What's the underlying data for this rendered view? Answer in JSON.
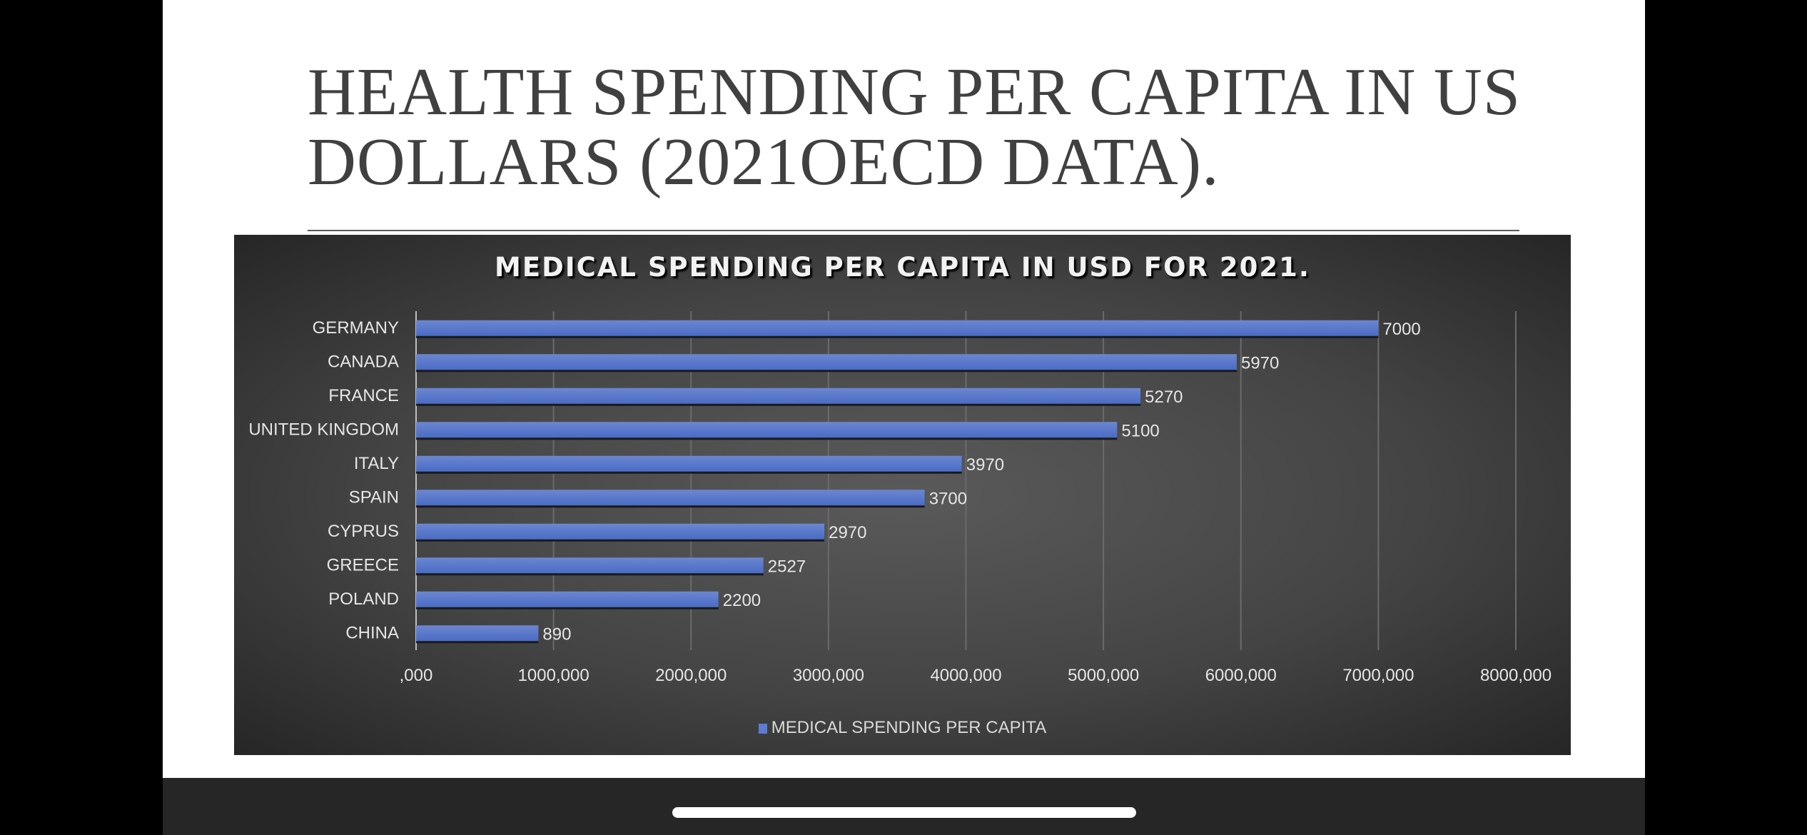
{
  "slide": {
    "title": "HEALTH SPENDING PER CAPITA IN US DOLLARS (2021OECD DATA)."
  },
  "chart_data": {
    "type": "bar",
    "orientation": "horizontal",
    "title": "MEDICAL SPENDING PER CAPITA IN USD FOR 2021.",
    "categories": [
      "GERMANY",
      "CANADA",
      "FRANCE",
      "UNITED KINGDOM",
      "ITALY",
      "SPAIN",
      "CYPRUS",
      "GREECE",
      "POLAND",
      "CHINA"
    ],
    "series": [
      {
        "name": "MEDICAL SPENDING PER CAPITA",
        "values": [
          7000,
          5970,
          5270,
          5100,
          3970,
          3700,
          2970,
          2527,
          2200,
          890
        ],
        "color": "#5b7bd5"
      }
    ],
    "data_labels": [
      "7000",
      "5970",
      "5270",
      "5100",
      "3970",
      "3700",
      "2970",
      "2527",
      "2200",
      "890"
    ],
    "x_ticks": [
      0,
      1000,
      2000,
      3000,
      4000,
      5000,
      6000,
      7000,
      8000
    ],
    "x_tick_labels": [
      ",000",
      "1000,000",
      "2000,000",
      "3000,000",
      "4000,000",
      "5000,000",
      "6000,000",
      "7000,000",
      "8000,000"
    ],
    "xlim": [
      0,
      8000
    ],
    "grid": "vertical",
    "legend": "bottom",
    "background": "#3f3f3f"
  }
}
